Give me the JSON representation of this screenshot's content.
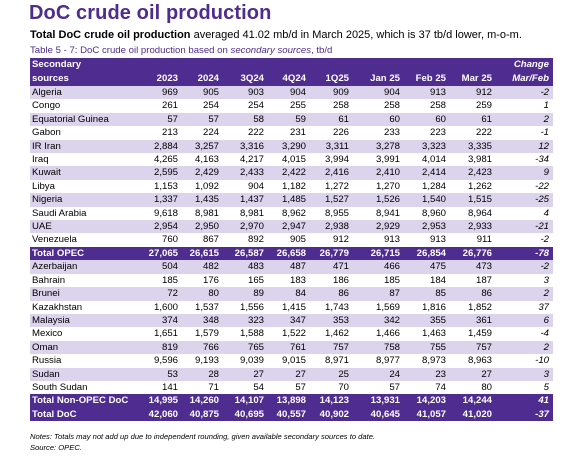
{
  "title": "DoC crude oil production",
  "subtitle": {
    "bold": "Total DoC crude oil production",
    "rest": " averaged 41.02 mb/d in March 2025, which is 37 tb/d lower, m-o-m."
  },
  "caption": {
    "prefix": "Table 5 - 7: DoC crude oil production based on ",
    "italic": "secondary sources",
    "suffix": ", tb/d"
  },
  "table": {
    "header_top": {
      "label": "Secondary",
      "change": "Change"
    },
    "header": {
      "label": "sources",
      "cols": [
        "2023",
        "2024",
        "3Q24",
        "4Q24",
        "1Q25",
        "Jan 25",
        "Feb 25",
        "Mar 25"
      ],
      "change": "Mar/Feb"
    },
    "opec_rows": [
      {
        "name": "Algeria",
        "values": [
          "969",
          "905",
          "903",
          "904",
          "909",
          "904",
          "913",
          "912"
        ],
        "change": "-2"
      },
      {
        "name": "Congo",
        "values": [
          "261",
          "254",
          "254",
          "255",
          "258",
          "258",
          "258",
          "259"
        ],
        "change": "1"
      },
      {
        "name": "Equatorial Guinea",
        "values": [
          "57",
          "57",
          "58",
          "59",
          "61",
          "60",
          "60",
          "61"
        ],
        "change": "2"
      },
      {
        "name": "Gabon",
        "values": [
          "213",
          "224",
          "222",
          "231",
          "226",
          "233",
          "223",
          "222"
        ],
        "change": "-1"
      },
      {
        "name": "IR Iran",
        "values": [
          "2,884",
          "3,257",
          "3,316",
          "3,290",
          "3,311",
          "3,278",
          "3,323",
          "3,335"
        ],
        "change": "12"
      },
      {
        "name": "Iraq",
        "values": [
          "4,265",
          "4,163",
          "4,217",
          "4,015",
          "3,994",
          "3,991",
          "4,014",
          "3,981"
        ],
        "change": "-34"
      },
      {
        "name": "Kuwait",
        "values": [
          "2,595",
          "2,429",
          "2,433",
          "2,422",
          "2,416",
          "2,410",
          "2,414",
          "2,423"
        ],
        "change": "9"
      },
      {
        "name": "Libya",
        "values": [
          "1,153",
          "1,092",
          "904",
          "1,182",
          "1,272",
          "1,270",
          "1,284",
          "1,262"
        ],
        "change": "-22"
      },
      {
        "name": "Nigeria",
        "values": [
          "1,337",
          "1,435",
          "1,437",
          "1,485",
          "1,527",
          "1,526",
          "1,540",
          "1,515"
        ],
        "change": "-25"
      },
      {
        "name": "Saudi Arabia",
        "values": [
          "9,618",
          "8,981",
          "8,981",
          "8,962",
          "8,955",
          "8,941",
          "8,960",
          "8,964"
        ],
        "change": "4"
      },
      {
        "name": "UAE",
        "values": [
          "2,954",
          "2,950",
          "2,970",
          "2,947",
          "2,938",
          "2,929",
          "2,953",
          "2,933"
        ],
        "change": "-21"
      },
      {
        "name": "Venezuela",
        "values": [
          "760",
          "867",
          "892",
          "905",
          "912",
          "913",
          "913",
          "911"
        ],
        "change": "-2"
      }
    ],
    "opec_total": {
      "name": "Total  OPEC",
      "values": [
        "27,065",
        "26,615",
        "26,587",
        "26,658",
        "26,779",
        "26,715",
        "26,854",
        "26,776"
      ],
      "change": "-78"
    },
    "nonopec_rows": [
      {
        "name": "Azerbaijan",
        "values": [
          "504",
          "482",
          "483",
          "487",
          "471",
          "466",
          "475",
          "473"
        ],
        "change": "-2"
      },
      {
        "name": "Bahrain",
        "values": [
          "185",
          "176",
          "165",
          "183",
          "186",
          "185",
          "184",
          "187"
        ],
        "change": "3"
      },
      {
        "name": "Brunei",
        "values": [
          "72",
          "80",
          "89",
          "84",
          "86",
          "87",
          "85",
          "86"
        ],
        "change": "2"
      },
      {
        "name": "Kazakhstan",
        "values": [
          "1,600",
          "1,537",
          "1,556",
          "1,415",
          "1,743",
          "1,569",
          "1,816",
          "1,852"
        ],
        "change": "37"
      },
      {
        "name": "Malaysia",
        "values": [
          "374",
          "348",
          "323",
          "347",
          "353",
          "342",
          "355",
          "361"
        ],
        "change": "6"
      },
      {
        "name": "Mexico",
        "values": [
          "1,651",
          "1,579",
          "1,588",
          "1,522",
          "1,462",
          "1,466",
          "1,463",
          "1,459"
        ],
        "change": "-4"
      },
      {
        "name": "Oman",
        "values": [
          "819",
          "766",
          "765",
          "761",
          "757",
          "758",
          "755",
          "757"
        ],
        "change": "2"
      },
      {
        "name": "Russia",
        "values": [
          "9,596",
          "9,193",
          "9,039",
          "9,015",
          "8,971",
          "8,977",
          "8,973",
          "8,963"
        ],
        "change": "-10"
      },
      {
        "name": "Sudan",
        "values": [
          "53",
          "28",
          "27",
          "27",
          "25",
          "24",
          "23",
          "27"
        ],
        "change": "3"
      },
      {
        "name": "South Sudan",
        "values": [
          "141",
          "71",
          "54",
          "57",
          "70",
          "57",
          "74",
          "80"
        ],
        "change": "5"
      }
    ],
    "nonopec_total": {
      "name": "Total Non-OPEC DoC",
      "values": [
        "14,995",
        "14,260",
        "14,107",
        "13,898",
        "14,123",
        "13,931",
        "14,203",
        "14,244"
      ],
      "change": "41"
    },
    "doc_total": {
      "name": "Total DoC",
      "values": [
        "42,060",
        "40,875",
        "40,695",
        "40,557",
        "40,902",
        "40,645",
        "41,057",
        "41,020"
      ],
      "change": "-37"
    }
  },
  "notes": {
    "line1": "Notes: Totals may not add up due to independent rounding, given available secondary sources to date.",
    "line2": "Source: OPEC."
  },
  "colors": {
    "brand_purple": "#4f2c8f",
    "band_lavender": "#dcd3ec"
  }
}
